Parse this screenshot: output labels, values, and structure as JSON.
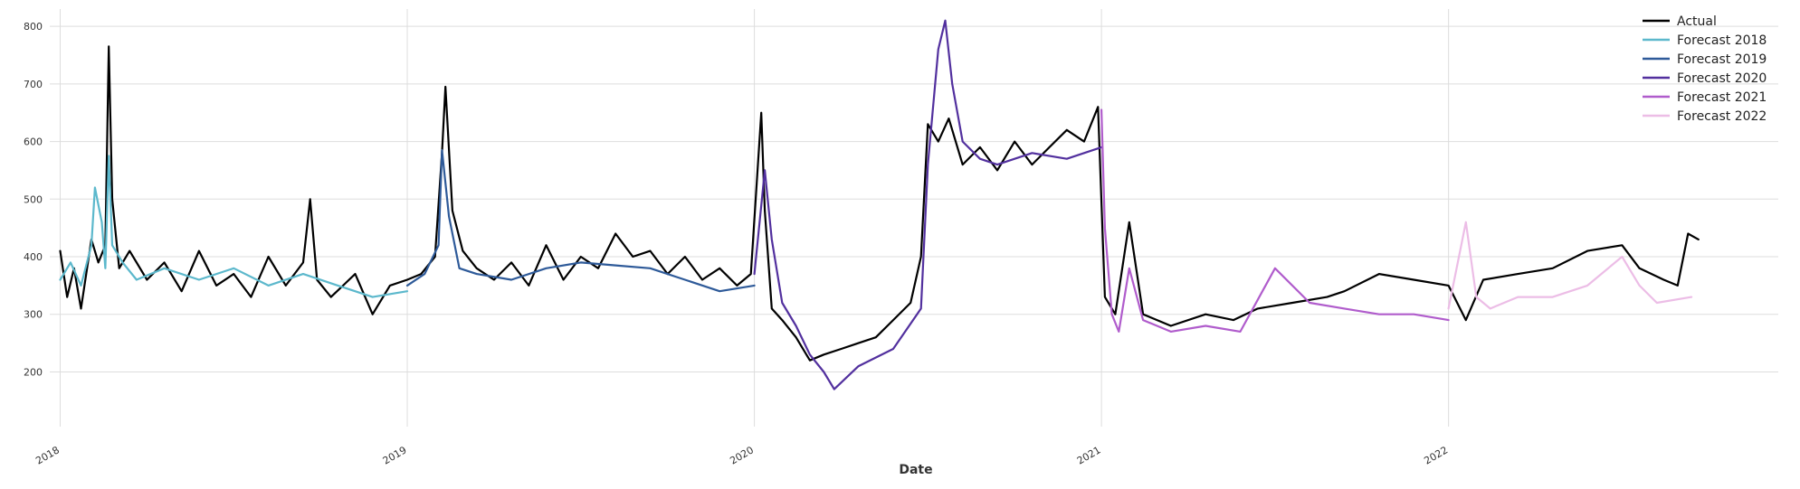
{
  "chart_data": {
    "type": "line",
    "title": "",
    "xlabel": "Date",
    "ylabel": "",
    "xlim": [
      2017.97,
      2022.95
    ],
    "ylim": [
      105,
      830
    ],
    "grid": true,
    "legend_position": "top-right",
    "x_ticks": [
      {
        "value": 2018,
        "label": "2018"
      },
      {
        "value": 2019,
        "label": "2019"
      },
      {
        "value": 2020,
        "label": "2020"
      },
      {
        "value": 2021,
        "label": "2021"
      },
      {
        "value": 2022,
        "label": "2022"
      }
    ],
    "y_ticks": [
      {
        "value": 200,
        "label": "200"
      },
      {
        "value": 300,
        "label": "300"
      },
      {
        "value": 400,
        "label": "400"
      },
      {
        "value": 500,
        "label": "500"
      },
      {
        "value": 600,
        "label": "600"
      },
      {
        "value": 700,
        "label": "700"
      },
      {
        "value": 800,
        "label": "800"
      }
    ],
    "series": [
      {
        "name": "Actual",
        "color": "#000000",
        "x": [
          2018.0,
          2018.02,
          2018.04,
          2018.06,
          2018.09,
          2018.11,
          2018.13,
          2018.14,
          2018.15,
          2018.17,
          2018.2,
          2018.25,
          2018.3,
          2018.35,
          2018.4,
          2018.45,
          2018.5,
          2018.55,
          2018.6,
          2018.65,
          2018.7,
          2018.72,
          2018.74,
          2018.78,
          2018.85,
          2018.9,
          2018.95,
          2019.0,
          2019.04,
          2019.08,
          2019.1,
          2019.11,
          2019.13,
          2019.16,
          2019.2,
          2019.25,
          2019.3,
          2019.35,
          2019.4,
          2019.45,
          2019.5,
          2019.55,
          2019.6,
          2019.65,
          2019.7,
          2019.75,
          2019.8,
          2019.85,
          2019.9,
          2019.95,
          2019.99,
          2020.02,
          2020.03,
          2020.05,
          2020.08,
          2020.12,
          2020.16,
          2020.2,
          2020.25,
          2020.3,
          2020.35,
          2020.4,
          2020.45,
          2020.48,
          2020.5,
          2020.53,
          2020.56,
          2020.6,
          2020.65,
          2020.7,
          2020.75,
          2020.8,
          2020.85,
          2020.9,
          2020.95,
          2020.99,
          2021.01,
          2021.04,
          2021.08,
          2021.12,
          2021.2,
          2021.3,
          2021.38,
          2021.45,
          2021.55,
          2021.65,
          2021.7,
          2021.8,
          2021.9,
          2022.0,
          2022.05,
          2022.1,
          2022.2,
          2022.3,
          2022.4,
          2022.5,
          2022.55,
          2022.62,
          2022.66,
          2022.69,
          2022.72
        ],
        "y": [
          410,
          330,
          380,
          310,
          430,
          390,
          420,
          765,
          500,
          380,
          410,
          360,
          390,
          340,
          410,
          350,
          370,
          330,
          400,
          350,
          390,
          500,
          360,
          330,
          370,
          300,
          350,
          360,
          370,
          400,
          580,
          695,
          480,
          410,
          380,
          360,
          390,
          350,
          420,
          360,
          400,
          380,
          440,
          400,
          410,
          370,
          400,
          360,
          380,
          350,
          370,
          650,
          480,
          310,
          290,
          260,
          220,
          230,
          240,
          250,
          260,
          290,
          320,
          400,
          630,
          600,
          640,
          560,
          590,
          550,
          600,
          560,
          590,
          620,
          600,
          660,
          330,
          300,
          460,
          300,
          280,
          300,
          290,
          310,
          320,
          330,
          340,
          370,
          360,
          350,
          290,
          360,
          370,
          380,
          410,
          420,
          380,
          360,
          350,
          440,
          430
        ]
      },
      {
        "name": "Forecast 2018",
        "color": "#5cb8cc",
        "x": [
          2018.0,
          2018.03,
          2018.06,
          2018.09,
          2018.1,
          2018.12,
          2018.13,
          2018.14,
          2018.15,
          2018.18,
          2018.22,
          2018.3,
          2018.4,
          2018.5,
          2018.6,
          2018.7,
          2018.8,
          2018.9,
          2019.0
        ],
        "y": [
          360,
          390,
          350,
          420,
          520,
          460,
          380,
          575,
          420,
          390,
          360,
          380,
          360,
          380,
          350,
          370,
          350,
          330,
          340
        ]
      },
      {
        "name": "Forecast 2019",
        "color": "#2e5a99",
        "x": [
          2019.0,
          2019.05,
          2019.09,
          2019.1,
          2019.12,
          2019.15,
          2019.2,
          2019.3,
          2019.4,
          2019.5,
          2019.6,
          2019.7,
          2019.8,
          2019.9,
          2020.0
        ],
        "y": [
          350,
          370,
          420,
          585,
          470,
          380,
          370,
          360,
          380,
          390,
          385,
          380,
          360,
          340,
          350
        ]
      },
      {
        "name": "Forecast 2020",
        "color": "#52309e",
        "x": [
          2020.0,
          2020.03,
          2020.05,
          2020.08,
          2020.12,
          2020.16,
          2020.2,
          2020.23,
          2020.3,
          2020.4,
          2020.48,
          2020.5,
          2020.53,
          2020.55,
          2020.57,
          2020.6,
          2020.65,
          2020.7,
          2020.8,
          2020.9,
          2021.0
        ],
        "y": [
          370,
          550,
          430,
          320,
          280,
          230,
          200,
          170,
          210,
          240,
          310,
          560,
          760,
          810,
          700,
          600,
          570,
          560,
          580,
          570,
          590
        ]
      },
      {
        "name": "Forecast 2021",
        "color": "#b05ccc",
        "x": [
          2021.0,
          2021.01,
          2021.03,
          2021.05,
          2021.08,
          2021.12,
          2021.2,
          2021.3,
          2021.4,
          2021.5,
          2021.6,
          2021.7,
          2021.8,
          2021.9,
          2022.0
        ],
        "y": [
          655,
          450,
          300,
          270,
          380,
          290,
          270,
          280,
          270,
          380,
          320,
          310,
          300,
          300,
          290
        ]
      },
      {
        "name": "Forecast 2022",
        "color": "#ecbde6",
        "x": [
          2022.0,
          2022.05,
          2022.08,
          2022.12,
          2022.2,
          2022.3,
          2022.4,
          2022.5,
          2022.55,
          2022.6,
          2022.7
        ],
        "y": [
          310,
          460,
          330,
          310,
          330,
          330,
          350,
          400,
          350,
          320,
          330
        ]
      }
    ]
  }
}
